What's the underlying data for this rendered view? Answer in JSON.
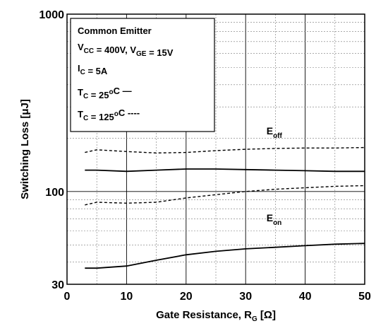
{
  "chart_data": {
    "type": "line",
    "xlabel": {
      "text": "Gate Resistance, R",
      "sub": "G",
      "unit": "[Ω]"
    },
    "ylabel": "Switching Loss [μJ]",
    "xlim": [
      0,
      50
    ],
    "ylim": [
      30,
      1000
    ],
    "yscale": "log",
    "x_ticks": [
      0,
      10,
      20,
      30,
      40,
      50
    ],
    "y_ticks": [
      30,
      100,
      1000
    ],
    "y_tick_labels": [
      "30",
      "100",
      "1000"
    ],
    "grid": true,
    "legend": {
      "title": "Common Emitter",
      "placement": "top-left",
      "conditions": [
        [
          {
            "t": "V"
          },
          {
            "s": "CC"
          },
          {
            "t": " = 400V, V"
          },
          {
            "s": "GE"
          },
          {
            "t": " = 15V"
          }
        ],
        [
          {
            "t": "I"
          },
          {
            "s": "C"
          },
          {
            "t": " = 5A"
          }
        ],
        [
          {
            "t": "T"
          },
          {
            "s": "C"
          },
          {
            "t": " = 25"
          },
          {
            "p": "o"
          },
          {
            "t": "C  —"
          }
        ],
        [
          {
            "t": "T"
          },
          {
            "s": "C"
          },
          {
            "t": " = 125"
          },
          {
            "p": "o"
          },
          {
            "t": "C ----"
          }
        ]
      ]
    },
    "annotations": [
      {
        "main": "E",
        "sub": "off",
        "x": 33.5,
        "y": 210
      },
      {
        "main": "E",
        "sub": "on",
        "x": 33.5,
        "y": 68
      }
    ],
    "series": [
      {
        "label": "E_off, T_C = 25°C",
        "style": "solid",
        "x": [
          3,
          5,
          10,
          15,
          20,
          25,
          30,
          35,
          40,
          45,
          50
        ],
        "y": [
          132,
          132,
          130,
          132,
          134,
          134,
          133,
          132,
          131,
          130,
          130
        ]
      },
      {
        "label": "E_off, T_C = 125°C",
        "style": "dashed",
        "x": [
          3,
          5,
          10,
          15,
          20,
          25,
          30,
          35,
          40,
          45,
          50
        ],
        "y": [
          166,
          172,
          168,
          165,
          166,
          170,
          173,
          175,
          176,
          176,
          177
        ]
      },
      {
        "label": "E_on, T_C = 25°C",
        "style": "solid",
        "x": [
          3,
          5,
          10,
          15,
          20,
          25,
          30,
          35,
          40,
          45,
          50
        ],
        "y": [
          37,
          37,
          38,
          41,
          44,
          46,
          47.5,
          48.5,
          49.5,
          50.5,
          51
        ]
      },
      {
        "label": "E_on, T_C = 125°C",
        "style": "dashed",
        "x": [
          3,
          5,
          10,
          15,
          20,
          25,
          30,
          35,
          40,
          45,
          50
        ],
        "y": [
          84,
          87,
          86,
          87,
          92,
          96,
          100,
          103,
          105,
          107,
          108
        ]
      }
    ]
  }
}
